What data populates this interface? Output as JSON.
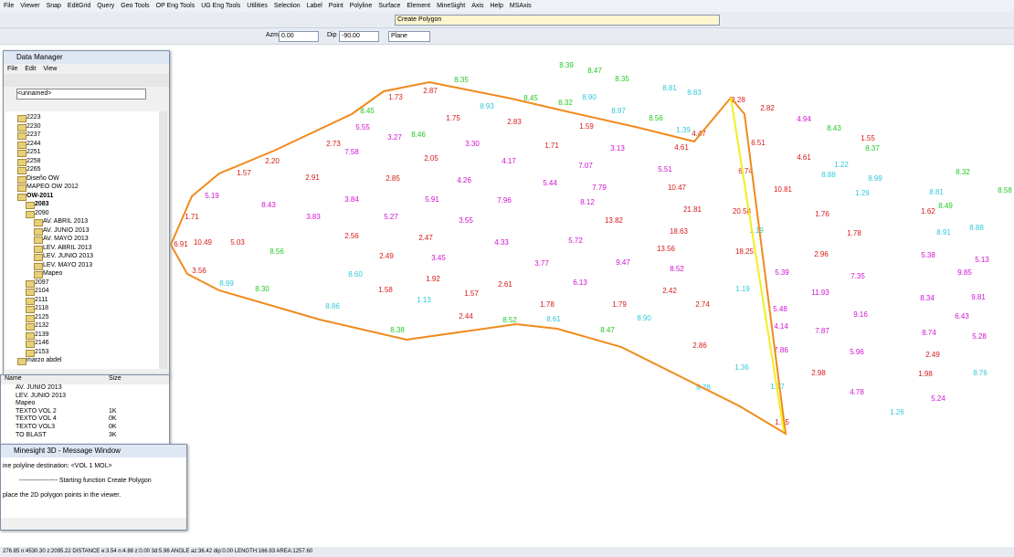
{
  "menu": [
    "File",
    "Viewer",
    "Snap",
    "EditGrid",
    "Query",
    "Geo Tools",
    "OP Eng Tools",
    "UG Eng Tools",
    "Utilities",
    "Selection",
    "Label",
    "Point",
    "Polyline",
    "Surface",
    "Element",
    "MineSight",
    "Axis",
    "Help",
    "MSAxis"
  ],
  "toolbar": {
    "command": "Create Polygon",
    "azm_label": "Azm",
    "azm": "0.00",
    "dip_label": "Dip",
    "dip": "-90.00",
    "plane": "Plane"
  },
  "data_manager": {
    "title": "Data Manager",
    "menu": [
      "File",
      "Edit",
      "View"
    ],
    "combo": "<unnamed>",
    "tree": [
      "2223",
      "2230",
      "2237",
      "2244",
      "2251",
      "2258",
      "2265",
      "Diseño OW",
      "MAPEO OW 2012",
      "OW-2011",
      "2083",
      "2090",
      "AV. ABRIL 2013",
      "AV. JUNIO 2013",
      "AV. MAYO 2013",
      "LEV. ABRIL 2013",
      "LEV. JUNIO 2013",
      "LEV. MAYO 2013",
      "Mapeo",
      "2097",
      "2104",
      "2111",
      "2118",
      "2125",
      "2132",
      "2139",
      "2146",
      "2153",
      "marzo abdel"
    ],
    "list_header": [
      "Name",
      "Size"
    ],
    "list": [
      [
        "AV. JUNIO 2013",
        ""
      ],
      [
        "LEV. JUNIO 2013",
        ""
      ],
      [
        "Mapeo",
        ""
      ],
      [
        "TEXTO VOL 2",
        "1K"
      ],
      [
        "TEXTO VOL 4",
        "0K"
      ],
      [
        "TEXTO VOL3",
        "0K"
      ],
      [
        "TO BLAST",
        "3K"
      ]
    ]
  },
  "message_window": {
    "title": "Minesight 3D - Message Window",
    "lines": [
      "ine polyline destination: <VOL 1 MOL>",
      "------------------ Starting function Create Polygon",
      "place the 2D polygon points in the viewer."
    ]
  },
  "map_labels": {
    "green": [
      "8.39",
      "8.47",
      "8.35",
      "8.35",
      "8.45",
      "8.32",
      "8.45",
      "8.46",
      "8.56",
      "8.43",
      "8.37",
      "8.32",
      "8.58",
      "8.49",
      "8.56",
      "8.30",
      "8.38",
      "8.52",
      "8.47"
    ],
    "cyan": [
      "8.93",
      "8.90",
      "8.97",
      "8.81",
      "8.83",
      "1.39",
      "1.22",
      "8.88",
      "8.99",
      "1.29",
      "8.81",
      "8.88",
      "8.91",
      "1.19",
      "8.60",
      "8.99",
      "1.13",
      "8.86",
      "1.19",
      "8.61",
      "8.90",
      "1.36",
      "8.78",
      "1.27",
      "1.26",
      "8.76"
    ],
    "red": [
      "1.73",
      "2.87",
      "1.75",
      "2.83",
      "1.59",
      "1.71",
      "2.73",
      "2.20",
      "2.05",
      "1.57",
      "2.91",
      "2.85",
      "2.28",
      "2.82",
      "1.55",
      "4.61",
      "6.51",
      "4.61",
      "4.47",
      "6.74",
      "10.47",
      "10.81",
      "20.58",
      "1.76",
      "1.62",
      "21.81",
      "13.82",
      "18.63",
      "1.71",
      "6.91",
      "10.49",
      "5.03",
      "2.56",
      "2.47",
      "2.49",
      "1.78",
      "18.25",
      "13.56",
      "2.96",
      "3.56",
      "1.92",
      "1.58",
      "1.57",
      "2.61",
      "2.42",
      "1.78",
      "1.79",
      "2.74",
      "2.44",
      "2.86",
      "2.98",
      "1.98",
      "2.49",
      "1.95"
    ],
    "magenta": [
      "5.55",
      "3.27",
      "3.30",
      "7.58",
      "4.17",
      "7.07",
      "5.51",
      "4.26",
      "5.44",
      "7.79",
      "4.94",
      "5.19",
      "8.43",
      "3.84",
      "5.91",
      "7.96",
      "8.12",
      "3.83",
      "5.27",
      "3.55",
      "4.33",
      "5.72",
      "3.45",
      "3.77",
      "9.47",
      "8.52",
      "5.39",
      "7.35",
      "9.85",
      "5.38",
      "5.13",
      "6.13",
      "11.93",
      "8.34",
      "9.81",
      "5.48",
      "9.16",
      "6.43",
      "4.14",
      "7.87",
      "8.74",
      "5.28",
      "5.96",
      "7.86",
      "4.78",
      "5.24",
      "3.13"
    ]
  },
  "status_bar": "276.85 n:4530.30 z:2095.22  DISTANCE e:3.54 n:4.88 z:0.00 3d:5.96  ANGLE az:36.42 dip:0.00  LENGTH:166.93  AREA:1257.60"
}
